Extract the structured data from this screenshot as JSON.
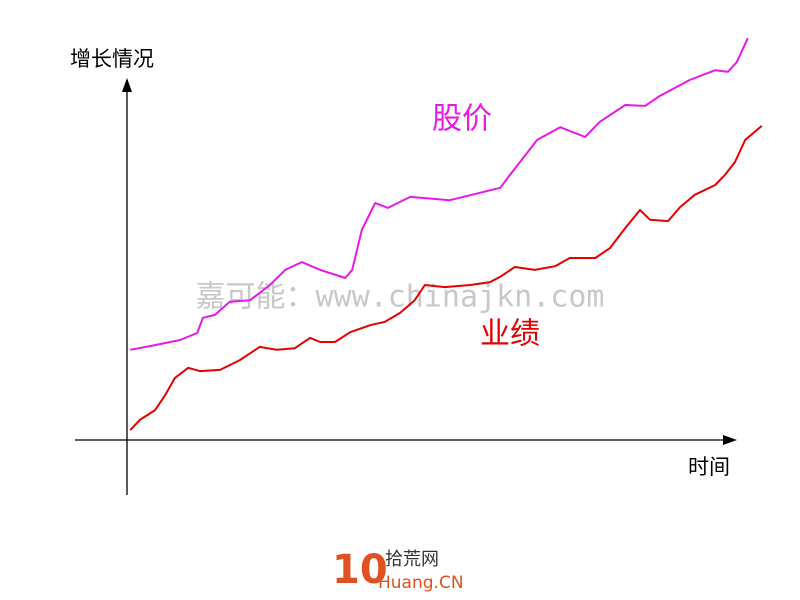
{
  "chart_data": {
    "type": "line",
    "y_label": "增长情况",
    "x_label": "时间",
    "xlim": [
      0,
      100
    ],
    "ylim": [
      0,
      100
    ],
    "series": [
      {
        "name": "股价",
        "color": "#e619e6",
        "x": [
          0.5,
          3.6,
          8.3,
          11,
          11.9,
          13.8,
          16.1,
          19.3,
          22.4,
          24.8,
          27.4,
          30.3,
          34.2,
          35.3,
          36.8,
          38.9,
          40.9,
          44.4,
          50.6,
          58.5,
          60,
          64.3,
          67.9,
          71.8,
          74.1,
          78.1,
          81.2,
          83.5,
          88.2,
          92.2,
          94.2,
          95.6,
          97.3
        ],
        "values": [
          22,
          22.9,
          24.4,
          26.1,
          29.8,
          30.5,
          33.7,
          34.1,
          37.8,
          41.5,
          43.4,
          41.5,
          39.5,
          41.5,
          51.2,
          57.8,
          56.6,
          59.3,
          58.5,
          61.5,
          64.6,
          73.2,
          76.3,
          73.9,
          77.6,
          81.7,
          81.5,
          83.9,
          87.8,
          90.2,
          89.8,
          92.2,
          98
        ]
      },
      {
        "name": "业绩",
        "color": "#e60000",
        "x": [
          0.5,
          2,
          4.4,
          6,
          7.5,
          9.6,
          11.4,
          14.6,
          17.7,
          20.8,
          23.5,
          26.3,
          28.7,
          30.3,
          32.6,
          35,
          38.1,
          40.4,
          42.8,
          45.1,
          46.7,
          49.8,
          53.8,
          56.9,
          58.5,
          60.8,
          63.9,
          67.1,
          69.4,
          73.4,
          75.7,
          78.1,
          80.4,
          82,
          84.8,
          86.7,
          89,
          92.2,
          93.7,
          95.3,
          96.9,
          99.5
        ],
        "values": [
          2.4,
          4.9,
          7.3,
          11,
          15.1,
          17.6,
          16.8,
          17.1,
          19.5,
          22.7,
          22,
          22.4,
          24.9,
          23.9,
          23.9,
          26.3,
          28,
          28.8,
          31,
          34.1,
          37.8,
          37.3,
          37.8,
          38.5,
          39.8,
          42.2,
          41.5,
          42.4,
          44.4,
          44.4,
          46.8,
          51.7,
          56.1,
          53.7,
          53.4,
          56.8,
          59.8,
          62.2,
          64.6,
          67.8,
          73.2,
          76.6
        ]
      }
    ]
  },
  "watermark": "嘉可能：www.chinajkn.com",
  "logo": {
    "number": "10",
    "title": "拾荒网",
    "domain": "Huang.CN"
  }
}
